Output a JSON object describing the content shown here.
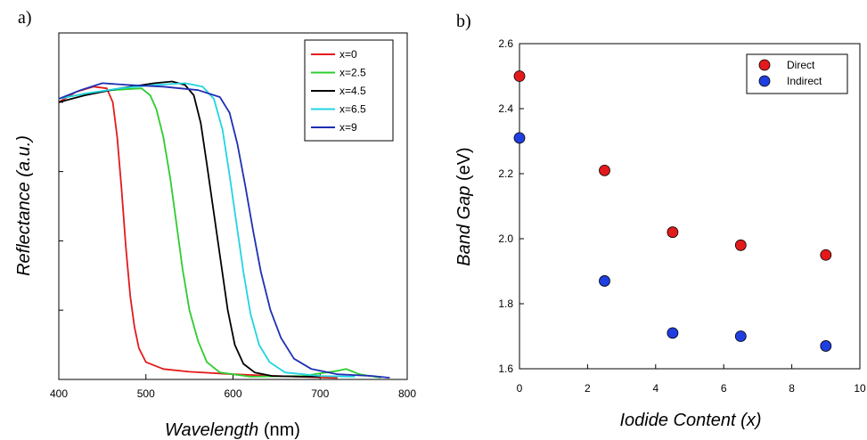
{
  "panels": {
    "a_label": "a)",
    "b_label": "b)"
  },
  "chart_data": [
    {
      "type": "line",
      "xlabel_main": "Wavelength",
      "xlabel_unit": " (nm)",
      "ylabel": "Reflectance (a.u.)",
      "xlim": [
        400,
        800
      ],
      "ylim": [
        0,
        1
      ],
      "x_ticks": [
        "400",
        "500",
        "600",
        "700",
        "800"
      ],
      "legend_position": "top-right",
      "series": [
        {
          "name": "x=0",
          "color": "#e31a1c",
          "points": [
            [
              400,
              0.8
            ],
            [
              420,
              0.83
            ],
            [
              440,
              0.845
            ],
            [
              455,
              0.84
            ],
            [
              462,
              0.8
            ],
            [
              467,
              0.7
            ],
            [
              472,
              0.55
            ],
            [
              477,
              0.38
            ],
            [
              482,
              0.24
            ],
            [
              487,
              0.15
            ],
            [
              492,
              0.09
            ],
            [
              500,
              0.05
            ],
            [
              520,
              0.03
            ],
            [
              550,
              0.022
            ],
            [
              600,
              0.015
            ],
            [
              650,
              0.01
            ],
            [
              700,
              0.006
            ],
            [
              720,
              0.004
            ]
          ]
        },
        {
          "name": "x=2.5",
          "color": "#2ecc2e",
          "points": [
            [
              400,
              0.81
            ],
            [
              430,
              0.825
            ],
            [
              460,
              0.835
            ],
            [
              495,
              0.84
            ],
            [
              505,
              0.82
            ],
            [
              512,
              0.78
            ],
            [
              520,
              0.7
            ],
            [
              528,
              0.58
            ],
            [
              535,
              0.45
            ],
            [
              542,
              0.32
            ],
            [
              550,
              0.2
            ],
            [
              560,
              0.11
            ],
            [
              570,
              0.05
            ],
            [
              585,
              0.02
            ],
            [
              620,
              0.008
            ],
            [
              680,
              0.01
            ],
            [
              720,
              0.025
            ],
            [
              730,
              0.03
            ],
            [
              745,
              0.015
            ],
            [
              770,
              0.005
            ]
          ]
        },
        {
          "name": "x=4.5",
          "color": "#000000",
          "points": [
            [
              400,
              0.8
            ],
            [
              430,
              0.82
            ],
            [
              470,
              0.84
            ],
            [
              510,
              0.855
            ],
            [
              530,
              0.86
            ],
            [
              545,
              0.85
            ],
            [
              555,
              0.82
            ],
            [
              563,
              0.74
            ],
            [
              570,
              0.62
            ],
            [
              578,
              0.48
            ],
            [
              586,
              0.34
            ],
            [
              594,
              0.2
            ],
            [
              602,
              0.1
            ],
            [
              612,
              0.045
            ],
            [
              625,
              0.02
            ],
            [
              645,
              0.01
            ],
            [
              680,
              0.008
            ],
            [
              700,
              0.008
            ]
          ]
        },
        {
          "name": "x=6.5",
          "color": "#21d4e0",
          "points": [
            [
              400,
              0.81
            ],
            [
              430,
              0.825
            ],
            [
              470,
              0.84
            ],
            [
              510,
              0.85
            ],
            [
              545,
              0.855
            ],
            [
              565,
              0.845
            ],
            [
              578,
              0.81
            ],
            [
              588,
              0.72
            ],
            [
              596,
              0.59
            ],
            [
              604,
              0.45
            ],
            [
              612,
              0.31
            ],
            [
              620,
              0.19
            ],
            [
              630,
              0.1
            ],
            [
              642,
              0.05
            ],
            [
              660,
              0.02
            ],
            [
              700,
              0.01
            ],
            [
              740,
              0.008
            ]
          ]
        },
        {
          "name": "x=9",
          "color": "#1f2fb4",
          "points": [
            [
              400,
              0.81
            ],
            [
              425,
              0.835
            ],
            [
              450,
              0.855
            ],
            [
              480,
              0.85
            ],
            [
              520,
              0.845
            ],
            [
              560,
              0.835
            ],
            [
              585,
              0.815
            ],
            [
              596,
              0.77
            ],
            [
              605,
              0.68
            ],
            [
              614,
              0.56
            ],
            [
              623,
              0.43
            ],
            [
              632,
              0.31
            ],
            [
              643,
              0.2
            ],
            [
              655,
              0.12
            ],
            [
              670,
              0.06
            ],
            [
              690,
              0.03
            ],
            [
              720,
              0.015
            ],
            [
              760,
              0.01
            ],
            [
              780,
              0.005
            ]
          ]
        }
      ]
    },
    {
      "type": "scatter",
      "xlabel": "Iodide Content (x)",
      "ylabel_main": "Band Gap",
      "ylabel_unit": " (eV)",
      "xlim": [
        0,
        10
      ],
      "ylim": [
        1.6,
        2.6
      ],
      "x_ticks": [
        "0",
        "2",
        "4",
        "6",
        "8",
        "10"
      ],
      "y_ticks": [
        "1.6",
        "1.8",
        "2.0",
        "2.2",
        "2.4",
        "2.6"
      ],
      "legend_position": "top-right",
      "series": [
        {
          "name": "Direct",
          "color": "#e31a1c",
          "x": [
            0,
            2.5,
            4.5,
            6.5,
            9
          ],
          "y": [
            2.5,
            2.21,
            2.02,
            1.98,
            1.95
          ]
        },
        {
          "name": "Indirect",
          "color": "#1f3fe0",
          "x": [
            0,
            2.5,
            4.5,
            6.5,
            9
          ],
          "y": [
            2.31,
            1.87,
            1.71,
            1.7,
            1.67
          ]
        }
      ]
    }
  ]
}
